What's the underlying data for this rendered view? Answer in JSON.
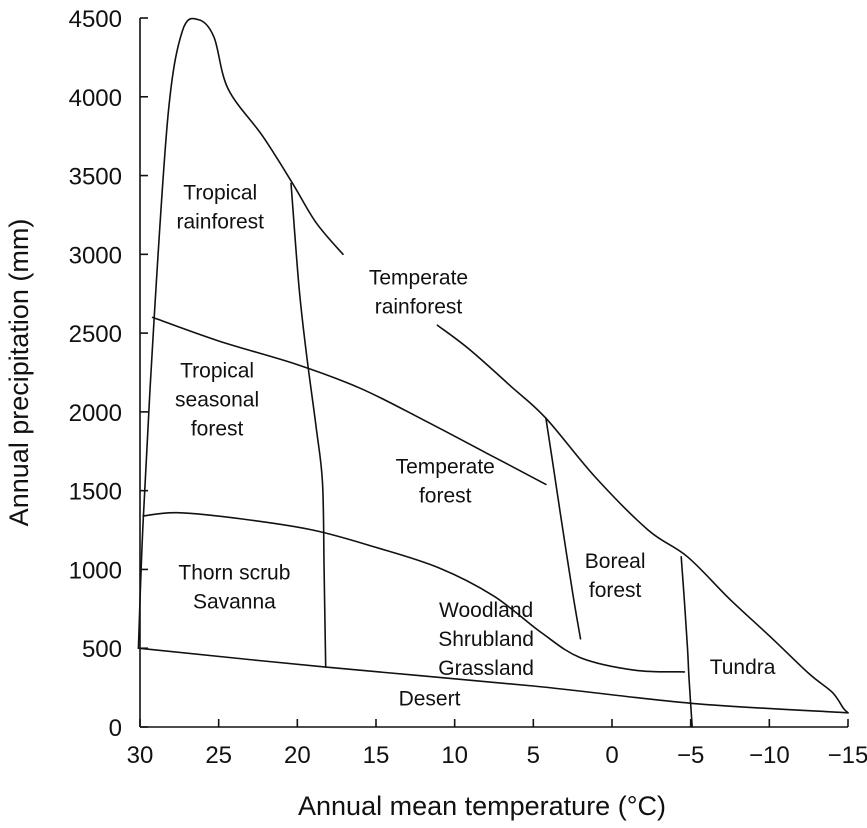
{
  "chart_data": {
    "type": "area",
    "xlabel": "Annual mean temperature (°C)",
    "ylabel": "Annual precipitation (mm)",
    "xlim": [
      30,
      -15
    ],
    "ylim": [
      0,
      4500
    ],
    "x_ticks": [
      30,
      25,
      20,
      15,
      10,
      5,
      0,
      -5,
      -10,
      -15
    ],
    "x_tick_labels": [
      "30",
      "25",
      "20",
      "15",
      "10",
      "5",
      "0",
      "−5",
      "−10",
      "−15"
    ],
    "y_ticks": [
      0,
      500,
      1000,
      1500,
      2000,
      2500,
      3000,
      3500,
      4000,
      4500
    ],
    "y_tick_labels": [
      "0",
      "500",
      "1000",
      "1500",
      "2000",
      "2500",
      "3000",
      "3500",
      "4000",
      "4500"
    ],
    "grid": false,
    "boundaries": [
      {
        "id": "outer-envelope",
        "points": [
          [
            30.1,
            500
          ],
          [
            29.8,
            1300
          ],
          [
            29.1,
            2600
          ],
          [
            28.2,
            3900
          ],
          [
            27.3,
            4420
          ],
          [
            26.3,
            4490
          ],
          [
            25.3,
            4380
          ],
          [
            24.4,
            4050
          ],
          [
            22.2,
            3750
          ],
          [
            20.3,
            3450
          ],
          [
            18.8,
            3200
          ],
          [
            17.1,
            3000
          ]
        ]
      },
      {
        "id": "outer-envelope-lower",
        "points": [
          [
            11.1,
            2550
          ],
          [
            9.1,
            2400
          ],
          [
            6.4,
            2160
          ],
          [
            4.2,
            1960
          ],
          [
            1.1,
            1590
          ],
          [
            -2.3,
            1250
          ],
          [
            -4.8,
            1080
          ],
          [
            -7.5,
            810
          ],
          [
            -10.2,
            560
          ],
          [
            -12.5,
            340
          ],
          [
            -14.0,
            220
          ],
          [
            -14.7,
            120
          ],
          [
            -15.0,
            90
          ]
        ]
      },
      {
        "id": "desert-top",
        "points": [
          [
            30.1,
            500
          ],
          [
            18.2,
            380
          ],
          [
            5.0,
            260
          ],
          [
            -5.1,
            150
          ],
          [
            -15.0,
            90
          ]
        ]
      },
      {
        "id": "tropical-forest-upper",
        "points": [
          [
            29.2,
            2600
          ],
          [
            25.0,
            2450
          ],
          [
            20.0,
            2300
          ],
          [
            16.0,
            2150
          ],
          [
            12.0,
            1950
          ],
          [
            8.0,
            1740
          ],
          [
            4.2,
            1540
          ]
        ]
      },
      {
        "id": "woodland-top",
        "points": [
          [
            29.8,
            1340
          ],
          [
            27.6,
            1360
          ],
          [
            23.5,
            1320
          ],
          [
            19.0,
            1250
          ],
          [
            15.0,
            1140
          ],
          [
            11.0,
            1010
          ],
          [
            7.5,
            830
          ],
          [
            4.5,
            600
          ],
          [
            2.0,
            440
          ],
          [
            -1.5,
            360
          ],
          [
            -4.6,
            350
          ]
        ]
      },
      {
        "id": "tropical-temperate-divide",
        "points": [
          [
            20.4,
            3450
          ],
          [
            19.9,
            2800
          ],
          [
            19.4,
            2350
          ],
          [
            18.8,
            1900
          ],
          [
            18.4,
            1550
          ],
          [
            18.3,
            1000
          ],
          [
            18.2,
            380
          ]
        ]
      },
      {
        "id": "temperate-boreal-divide",
        "points": [
          [
            4.2,
            1960
          ],
          [
            3.8,
            1700
          ],
          [
            3.2,
            1300
          ],
          [
            2.5,
            850
          ],
          [
            2.0,
            560
          ]
        ]
      },
      {
        "id": "boreal-tundra-divide",
        "points": [
          [
            -4.4,
            1080
          ],
          [
            -4.6,
            800
          ],
          [
            -4.8,
            500
          ],
          [
            -4.9,
            300
          ],
          [
            -5.1,
            0
          ]
        ]
      }
    ],
    "regions": [
      {
        "id": "tropical-rainforest",
        "lines": [
          "Tropical",
          "rainforest"
        ],
        "x": 24.9,
        "y": 3300
      },
      {
        "id": "temperate-rainforest",
        "lines": [
          "Temperate",
          "rainforest"
        ],
        "x": 12.3,
        "y": 2760
      },
      {
        "id": "tropical-seasonal-forest",
        "lines": [
          "Tropical",
          "seasonal",
          "forest"
        ],
        "x": 25.1,
        "y": 2080
      },
      {
        "id": "temperate-forest",
        "lines": [
          "Temperate",
          "forest"
        ],
        "x": 10.6,
        "y": 1560
      },
      {
        "id": "thorn-scrub-savanna",
        "lines": [
          "Thorn scrub",
          "Savanna"
        ],
        "x": 24.0,
        "y": 890
      },
      {
        "id": "woodland-shrubland-grassland",
        "lines": [
          "Woodland",
          "Shrubland",
          "Grassland"
        ],
        "x": 8.0,
        "y": 560
      },
      {
        "id": "boreal-forest",
        "lines": [
          "Boreal",
          "forest"
        ],
        "x": -0.2,
        "y": 960
      },
      {
        "id": "tundra",
        "lines": [
          "Tundra"
        ],
        "x": -8.3,
        "y": 380
      },
      {
        "id": "desert",
        "lines": [
          "Desert"
        ],
        "x": 11.6,
        "y": 180
      }
    ]
  }
}
